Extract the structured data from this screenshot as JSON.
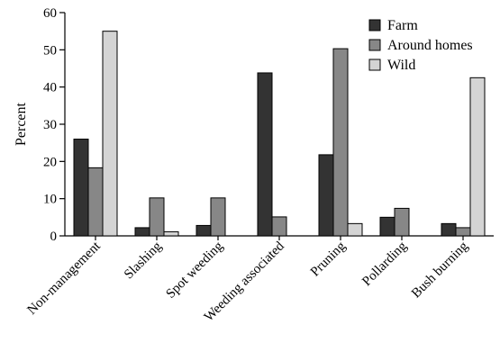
{
  "chart_data": {
    "type": "bar",
    "title": "",
    "xlabel": "",
    "ylabel": "Percent",
    "ylim": [
      0,
      60
    ],
    "yticks": [
      0,
      10,
      20,
      30,
      40,
      50,
      60
    ],
    "grid": false,
    "legend_position": "top-right",
    "categories": [
      "Non-management",
      "Slashing",
      "Spot weeding",
      "Weeding associated",
      "Pruning",
      "Pollarding",
      "Bush burning"
    ],
    "series": [
      {
        "name": "Farm",
        "color": "#333333",
        "values": [
          26,
          2.2,
          2.8,
          43.8,
          21.8,
          5,
          3.3
        ]
      },
      {
        "name": "Around homes",
        "color": "#878787",
        "values": [
          18.3,
          10.2,
          10.2,
          5.1,
          50.3,
          7.4,
          2.2
        ]
      },
      {
        "name": "Wild",
        "color": "#d4d4d4",
        "values": [
          55,
          1.1,
          0,
          0,
          3.3,
          0,
          42.5
        ]
      }
    ]
  }
}
